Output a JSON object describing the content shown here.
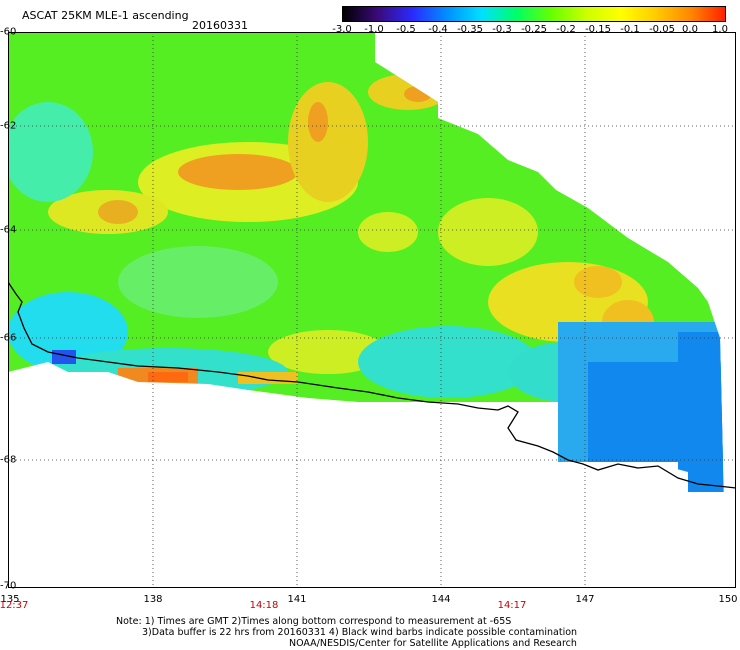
{
  "header": {
    "title": "ASCAT 25KM MLE-1 ascending",
    "date": "20160331"
  },
  "colorbar": {
    "labels": [
      "-3.0",
      "-1.0",
      "-0.5",
      "-0.4",
      "-0.35",
      "-0.3",
      "-0.25",
      "-0.2",
      "-0.15",
      "-0.1",
      "-0.05",
      "0.0",
      "1.0"
    ],
    "colors": [
      "#000000",
      "#3b0a7a",
      "#2a2aff",
      "#0090ff",
      "#00e0ff",
      "#00ff66",
      "#66ff00",
      "#ccff00",
      "#ffff00",
      "#ffcc00",
      "#ff8800",
      "#ff2200"
    ]
  },
  "map": {
    "lat_labels": [
      "-60",
      "-62",
      "-64",
      "-66",
      "-68",
      "-70"
    ],
    "lon_labels": [
      "135",
      "138",
      "141",
      "144",
      "147",
      "150"
    ],
    "time_labels": [
      "12:37",
      "14:18",
      "14:17"
    ],
    "lat_range": [
      -70,
      -60
    ],
    "lon_range": [
      135,
      150
    ]
  },
  "notes": [
    "Note: 1) Times are GMT 2)Times along bottom correspond to measurement at -65S",
    "3)Data buffer is 22 hrs from 20160331 4) Black wind barbs indicate possible contamination",
    "NOAA/NESDIS/Center for Satellite Applications and Research"
  ]
}
